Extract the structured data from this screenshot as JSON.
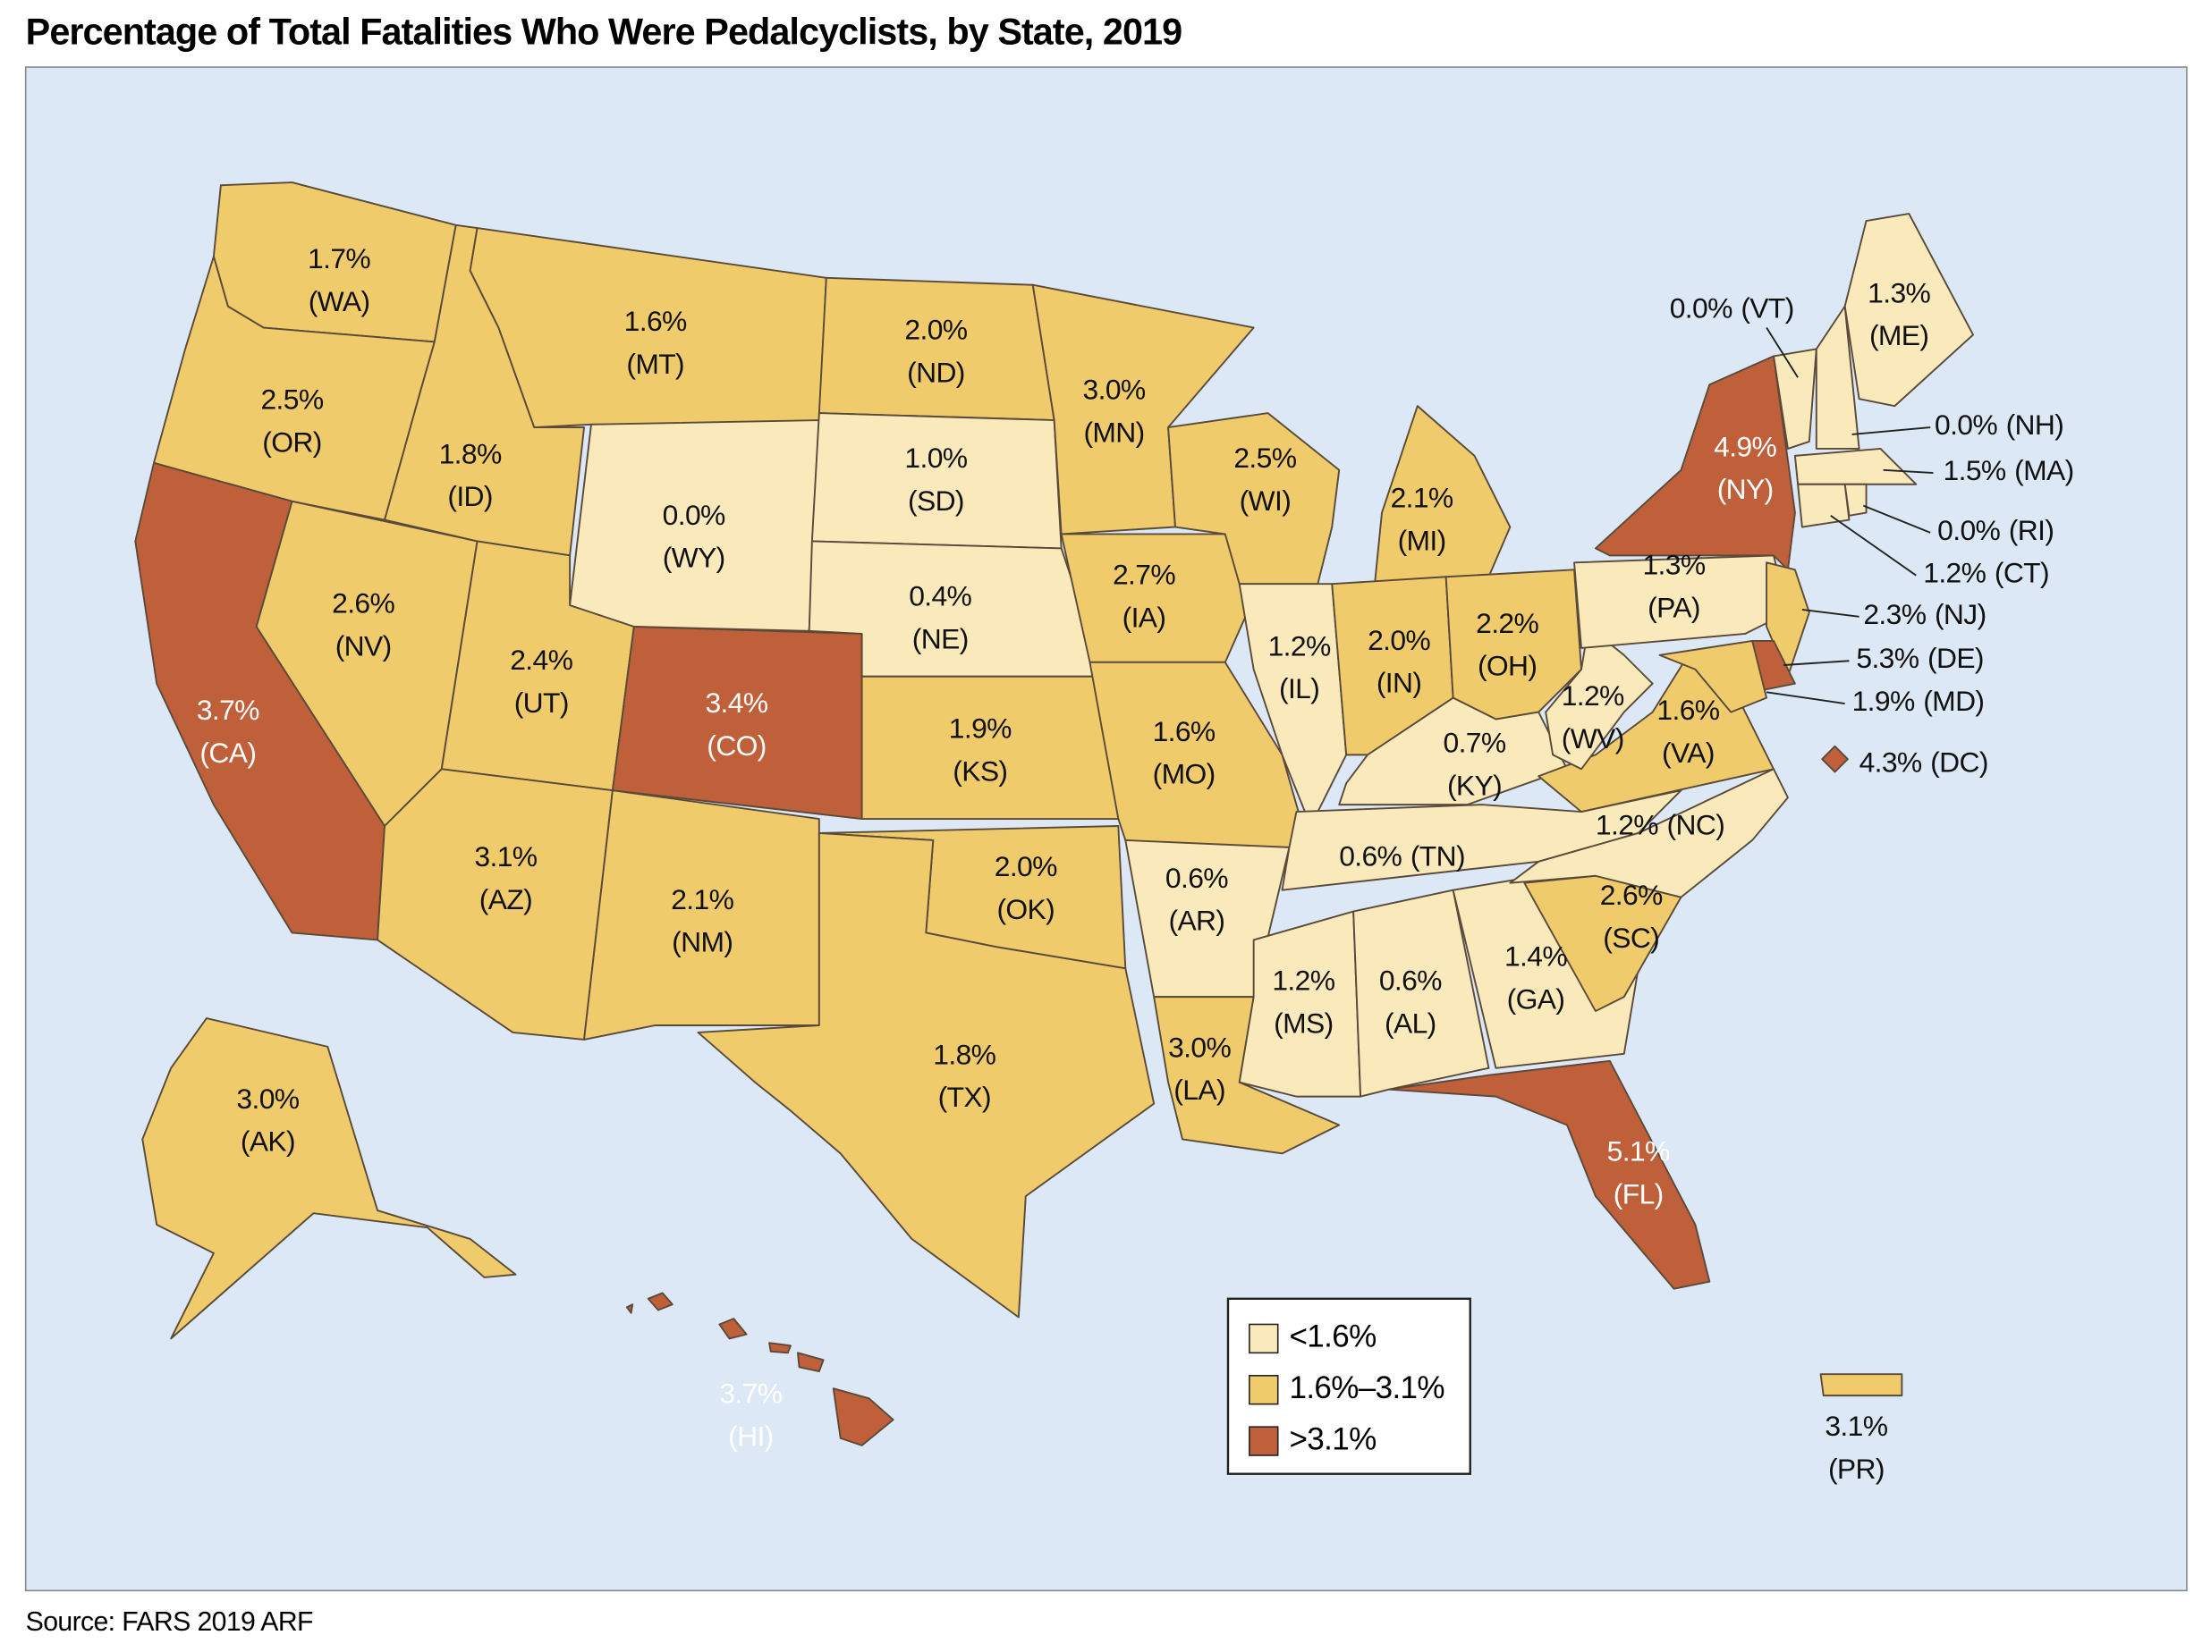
{
  "chart_data": {
    "type": "choropleth",
    "title": "Percentage of Total Fatalities Who Were Pedalcyclists, by State, 2019",
    "source": "Source: FARS 2019 ARF",
    "categories": [
      "(WA)",
      "(OR)",
      "(CA)",
      "(NV)",
      "(ID)",
      "(MT)",
      "(WY)",
      "(UT)",
      "(CO)",
      "(AZ)",
      "(NM)",
      "(ND)",
      "(SD)",
      "(NE)",
      "(KS)",
      "(OK)",
      "(TX)",
      "(MN)",
      "(IA)",
      "(MO)",
      "(AR)",
      "(LA)",
      "(WI)",
      "(IL)",
      "(MI)",
      "(IN)",
      "(OH)",
      "(KY)",
      "(TN)",
      "(MS)",
      "(AL)",
      "(GA)",
      "(FL)",
      "(SC)",
      "(NC)",
      "(VA)",
      "(WV)",
      "(PA)",
      "(NY)",
      "(VT)",
      "(ME)",
      "(NH)",
      "(MA)",
      "(RI)",
      "(CT)",
      "(NJ)",
      "(DE)",
      "(MD)",
      "(DC)",
      "(AK)",
      "(HI)",
      "(PR)"
    ],
    "values": [
      1.7,
      2.5,
      3.7,
      2.6,
      1.8,
      1.6,
      0.0,
      2.4,
      3.4,
      3.1,
      2.1,
      2.0,
      1.0,
      0.4,
      1.9,
      2.0,
      1.8,
      3.0,
      2.7,
      1.6,
      0.6,
      3.0,
      2.5,
      1.2,
      2.1,
      2.0,
      2.2,
      0.7,
      0.6,
      1.2,
      0.6,
      1.4,
      5.1,
      2.6,
      1.2,
      1.6,
      1.2,
      1.3,
      4.9,
      0.0,
      1.3,
      0.0,
      1.5,
      0.0,
      1.2,
      2.3,
      5.3,
      1.9,
      4.3,
      3.0,
      3.7,
      3.1
    ],
    "value_labels": [
      "1.7%",
      "2.5%",
      "3.7%",
      "2.6%",
      "1.8%",
      "1.6%",
      "0.0%",
      "2.4%",
      "3.4%",
      "3.1%",
      "2.1%",
      "2.0%",
      "1.0%",
      "0.4%",
      "1.9%",
      "2.0%",
      "1.8%",
      "3.0%",
      "2.7%",
      "1.6%",
      "0.6%",
      "3.0%",
      "2.5%",
      "1.2%",
      "2.1%",
      "2.0%",
      "2.2%",
      "0.7%",
      "0.6%",
      "1.2%",
      "0.6%",
      "1.4%",
      "5.1%",
      "2.6%",
      "1.2%",
      "1.6%",
      "1.2%",
      "1.3%",
      "4.9%",
      "0.0%",
      "1.3%",
      "0.0%",
      "1.5%",
      "0.0%",
      "1.2%",
      "2.3%",
      "5.3%",
      "1.9%",
      "4.3%",
      "3.0%",
      "3.7%",
      "3.1%"
    ],
    "breaks": [
      1.6,
      3.1
    ],
    "legend": [
      {
        "label": "<1.6%",
        "color": "#faeabb"
      },
      {
        "label": "1.6%–3.1%",
        "color": "#f0cb6b"
      },
      {
        "label": ">3.1%",
        "color": "#c0603a"
      }
    ]
  }
}
